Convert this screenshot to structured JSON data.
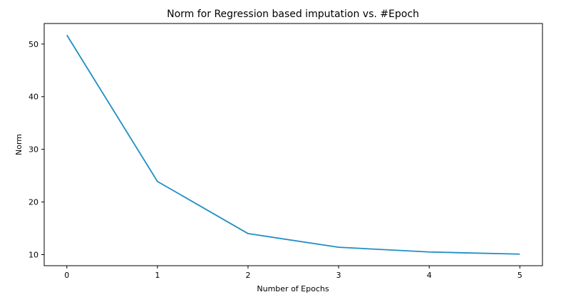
{
  "chart_data": {
    "type": "line",
    "title": "Norm for Regression based imputation vs. #Epoch",
    "xlabel": "Number of Epochs",
    "ylabel": "Norm",
    "x": [
      0,
      1,
      2,
      3,
      4,
      5
    ],
    "series": [
      {
        "values": [
          51.7,
          23.9,
          14.0,
          11.4,
          10.5,
          10.1
        ],
        "color": "#1f8fc4"
      }
    ],
    "xlim": [
      -0.25,
      5.25
    ],
    "ylim": [
      7.9,
      53.9
    ],
    "xticks": [
      0,
      1,
      2,
      3,
      4,
      5
    ],
    "yticks": [
      10,
      20,
      30,
      40,
      50
    ],
    "grid": false,
    "legend": "none"
  }
}
